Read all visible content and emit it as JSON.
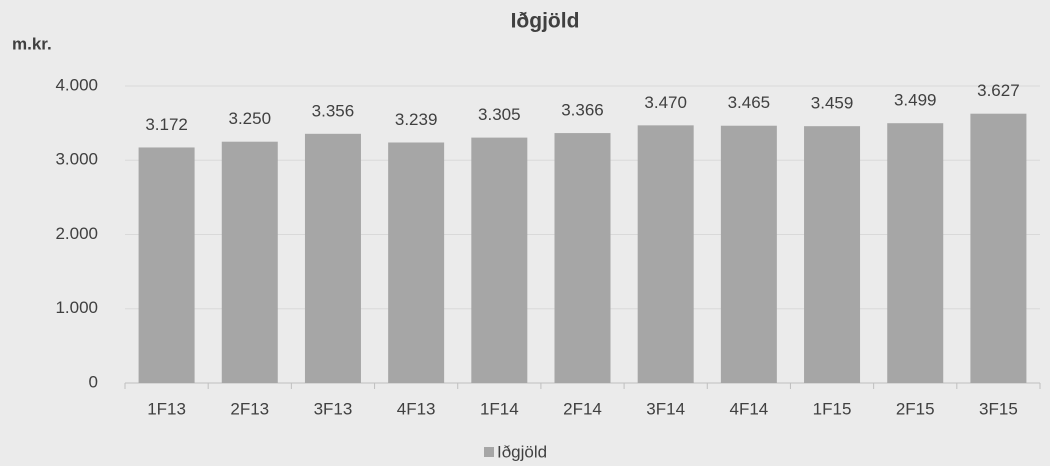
{
  "chart_data": {
    "type": "bar",
    "title": "Iðgjöld",
    "y_label": "m.kr.",
    "categories": [
      "1F13",
      "2F13",
      "3F13",
      "4F13",
      "1F14",
      "2F14",
      "3F14",
      "4F14",
      "1F15",
      "2F15",
      "3F15"
    ],
    "series": [
      {
        "name": "Iðgjöld",
        "color": "#a6a6a6",
        "values": [
          3172,
          3250,
          3356,
          3239,
          3305,
          3366,
          3470,
          3465,
          3459,
          3499,
          3627
        ],
        "value_labels": [
          "3.172",
          "3.250",
          "3.356",
          "3.239",
          "3.305",
          "3.366",
          "3.470",
          "3.465",
          "3.459",
          "3.499",
          "3.627"
        ]
      }
    ],
    "ylim": [
      0,
      4000
    ],
    "yticks": [
      0,
      {
        "value": 1000,
        "label": "1.000"
      },
      {
        "value": 2000,
        "label": "2.000"
      },
      {
        "value": 3000,
        "label": "3.000"
      },
      {
        "value": 4000,
        "label": "4.000"
      }
    ],
    "grid": true,
    "legend": "bottom"
  }
}
